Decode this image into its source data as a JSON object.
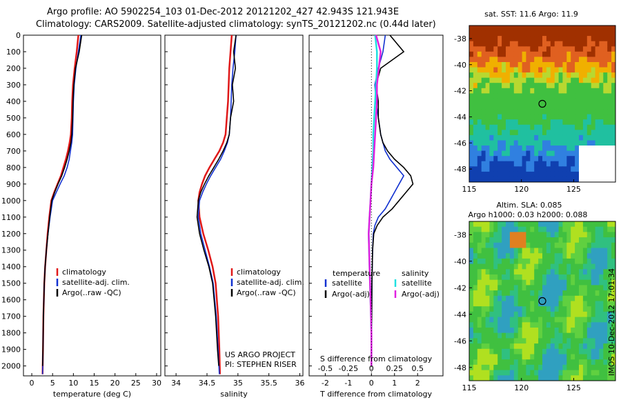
{
  "title_line1": "Argo profile: AO 5902254_103 01-Dec-2012 20121202_427 42.943S 121.943E",
  "title_line2": "Climatology: CARS2009. Satellite-adjusted climatology: synTS_20121202.nc (0.44d later)",
  "sst_title": "sat. SST: 11.6 Argo: 11.9",
  "sla_title1": "Altim. SLA: 0.085",
  "sla_title2": "Argo h1000: 0.03 h2000: 0.088",
  "side_stamp": "IMOS 10-Dec-2012 17:01:34",
  "project_line1": "US ARGO PROJECT",
  "project_line2": "PI: STEPHEN RISER",
  "colors": {
    "climatology": "#e01818",
    "satellite": "#1030d0",
    "argo": "#000000",
    "s_sat": "#20e0e0",
    "s_argo": "#e020e0"
  },
  "chart_data": [
    {
      "type": "line",
      "xlabel": "temperature (deg C)",
      "xticks": [
        0,
        5,
        10,
        15,
        20,
        25,
        30
      ],
      "xlim": [
        -2,
        31
      ],
      "ylim": [
        0,
        2060
      ],
      "yticks": [
        0,
        100,
        200,
        300,
        400,
        500,
        600,
        700,
        800,
        900,
        1000,
        1100,
        1200,
        1300,
        1400,
        1500,
        1600,
        1700,
        1800,
        1900,
        2000
      ],
      "legend": [
        "climatology",
        "satellite-adj. clim.",
        "Argo(..raw -QC)"
      ],
      "series": [
        {
          "name": "climatology",
          "color": "climatology",
          "x": [
            11.2,
            10.8,
            10.3,
            9.9,
            9.7,
            9.6,
            9.4,
            9.1,
            8.7,
            8.2,
            7.6,
            7.0,
            6.2,
            5.4,
            4.7,
            4.2,
            3.8,
            3.5,
            3.2,
            3.0,
            2.8,
            2.7,
            2.6
          ],
          "y": [
            0,
            100,
            200,
            300,
            400,
            500,
            600,
            650,
            700,
            750,
            800,
            850,
            900,
            950,
            1000,
            1100,
            1200,
            1300,
            1400,
            1500,
            1700,
            1900,
            2050
          ]
        },
        {
          "name": "satellite-adj. clim.",
          "color": "satellite",
          "x": [
            11.8,
            11.2,
            10.6,
            10.2,
            10.0,
            9.9,
            9.8,
            9.6,
            9.3,
            9.0,
            8.5,
            7.8,
            6.8,
            5.9,
            5.0,
            4.4,
            3.9,
            3.5,
            3.2,
            3.0,
            2.8,
            2.7,
            2.6
          ],
          "y": [
            0,
            100,
            200,
            300,
            400,
            500,
            600,
            650,
            700,
            750,
            800,
            850,
            900,
            950,
            1000,
            1100,
            1200,
            1300,
            1400,
            1500,
            1700,
            1900,
            2050
          ]
        },
        {
          "name": "Argo(..raw -QC)",
          "color": "argo",
          "x": [
            12.0,
            11.4,
            10.5,
            10.1,
            9.9,
            9.8,
            9.6,
            9.4,
            9.0,
            8.5,
            7.9,
            7.2,
            6.3,
            5.5,
            4.8,
            4.3,
            3.9,
            3.5,
            3.2,
            3.0,
            2.8,
            2.7,
            2.6
          ],
          "y": [
            0,
            100,
            200,
            300,
            400,
            500,
            600,
            650,
            700,
            750,
            800,
            850,
            900,
            950,
            1000,
            1100,
            1200,
            1300,
            1400,
            1500,
            1700,
            1900,
            2000
          ]
        }
      ]
    },
    {
      "type": "line",
      "xlabel": "salinity",
      "xticks": [
        34,
        34.5,
        35,
        35.5,
        36
      ],
      "xticklabels": [
        "34",
        "34.5",
        "35",
        "35.5",
        "36"
      ],
      "xlim": [
        33.82,
        36.05
      ],
      "ylim": [
        0,
        2060
      ],
      "legend": [
        "climatology",
        "satellite-adj. clim.",
        "Argo(..raw -QC)"
      ],
      "series": [
        {
          "name": "climatology",
          "color": "climatology",
          "x": [
            34.9,
            34.88,
            34.86,
            34.85,
            34.84,
            34.82,
            34.8,
            34.76,
            34.7,
            34.62,
            34.54,
            34.47,
            34.42,
            34.38,
            34.36,
            34.38,
            34.44,
            34.52,
            34.59,
            34.64,
            34.68,
            34.7,
            34.71
          ],
          "y": [
            0,
            100,
            200,
            300,
            400,
            500,
            600,
            650,
            700,
            750,
            800,
            850,
            900,
            950,
            1000,
            1100,
            1200,
            1300,
            1400,
            1500,
            1700,
            1900,
            2050
          ]
        },
        {
          "name": "satellite-adj. clim.",
          "color": "satellite",
          "x": [
            34.97,
            34.95,
            34.92,
            34.9,
            34.89,
            34.88,
            34.86,
            34.83,
            34.78,
            34.72,
            34.64,
            34.56,
            34.49,
            34.43,
            34.38,
            34.36,
            34.4,
            34.47,
            34.54,
            34.6,
            34.65,
            34.68,
            34.7
          ],
          "y": [
            0,
            100,
            200,
            300,
            400,
            500,
            600,
            650,
            700,
            750,
            800,
            850,
            900,
            950,
            1000,
            1100,
            1200,
            1300,
            1400,
            1500,
            1700,
            1900,
            2050
          ]
        },
        {
          "name": "Argo(..raw -QC)",
          "color": "argo",
          "x": [
            34.97,
            34.93,
            34.96,
            34.91,
            34.93,
            34.88,
            34.86,
            34.82,
            34.76,
            34.69,
            34.61,
            34.53,
            34.46,
            34.4,
            34.36,
            34.34,
            34.38,
            34.45,
            34.53,
            34.59,
            34.64,
            34.67,
            34.69
          ],
          "y": [
            0,
            100,
            200,
            300,
            400,
            500,
            600,
            650,
            700,
            750,
            800,
            850,
            900,
            950,
            1000,
            1100,
            1200,
            1300,
            1400,
            1500,
            1700,
            1900,
            2000
          ]
        }
      ]
    },
    {
      "type": "line",
      "xlabel": "T difference from climatology",
      "xlabel_top": "S difference from climatology",
      "xticks": [
        -2,
        -1,
        0,
        1,
        2
      ],
      "xticks_top": [
        -0.5,
        -0.25,
        0,
        0.25,
        0.5
      ],
      "xlim": [
        -2.7,
        3.1
      ],
      "ylim": [
        0,
        2060
      ],
      "legend_titles": [
        "temperature",
        "salinity"
      ],
      "legend": [
        "satellite",
        "Argo(-adj)",
        "satellite",
        "Argo(-adj)"
      ],
      "series": [
        {
          "name": "satellite",
          "color": "satellite",
          "x": [
            0.6,
            0.5,
            0.3,
            0.15,
            0.2,
            0.3,
            0.4,
            0.5,
            0.6,
            0.8,
            1.1,
            1.4,
            1.2,
            1.0,
            0.8,
            0.6,
            0.3,
            0.15,
            0.08,
            0.05,
            0.02,
            0.01,
            0.0
          ],
          "y": [
            0,
            100,
            200,
            300,
            400,
            500,
            600,
            650,
            700,
            750,
            800,
            850,
            900,
            950,
            1000,
            1050,
            1100,
            1150,
            1200,
            1300,
            1500,
            1800,
            2000
          ]
        },
        {
          "name": "Argo(-adj)",
          "color": "argo",
          "x": [
            0.8,
            1.4,
            0.4,
            0.2,
            0.3,
            0.3,
            0.4,
            0.5,
            0.7,
            1.0,
            1.4,
            1.7,
            1.8,
            1.5,
            1.2,
            0.9,
            0.5,
            0.25,
            0.1,
            0.05,
            0.02,
            0.01,
            0.0
          ],
          "y": [
            0,
            100,
            200,
            300,
            400,
            500,
            600,
            650,
            700,
            750,
            800,
            850,
            900,
            950,
            1000,
            1050,
            1100,
            1150,
            1200,
            1300,
            1500,
            1800,
            2000
          ]
        },
        {
          "name": "satellite",
          "color": "s_sat",
          "x": [
            0.04,
            0.06,
            0.06,
            0.05,
            0.04,
            0.03,
            0.02,
            0.02,
            0.01,
            0.0,
            -0.01,
            -0.02,
            -0.03,
            -0.02,
            -0.01,
            0.0,
            0.0
          ],
          "y": [
            0,
            100,
            200,
            300,
            400,
            500,
            600,
            700,
            800,
            900,
            1000,
            1100,
            1200,
            1400,
            1600,
            1800,
            2000
          ]
        },
        {
          "name": "Argo(-adj)",
          "color": "s_argo",
          "x": [
            0.05,
            0.1,
            0.08,
            0.06,
            0.06,
            0.05,
            0.04,
            0.03,
            0.02,
            0.0,
            -0.01,
            -0.02,
            -0.03,
            -0.02,
            -0.01,
            0.0,
            0.0
          ],
          "y": [
            0,
            100,
            200,
            300,
            400,
            500,
            600,
            700,
            800,
            900,
            1000,
            1100,
            1200,
            1400,
            1600,
            1800,
            2000
          ]
        }
      ]
    },
    {
      "type": "heatmap",
      "title": "sat. SST: 11.6 Argo: 11.9",
      "xticks": [
        115,
        120,
        125
      ],
      "yticks": [
        -38,
        -40,
        -42,
        -44,
        -46,
        -48
      ],
      "xlim": [
        115,
        129
      ],
      "ylim": [
        -49,
        -37
      ],
      "marker": [
        122,
        -43
      ]
    },
    {
      "type": "heatmap",
      "title": "Altim. SLA: 0.085",
      "xticks": [
        115,
        120,
        125
      ],
      "yticks": [
        -38,
        -40,
        -42,
        -44,
        -46,
        -48
      ],
      "xlim": [
        115,
        129
      ],
      "ylim": [
        -49,
        -37
      ],
      "marker": [
        122,
        -43
      ]
    }
  ]
}
